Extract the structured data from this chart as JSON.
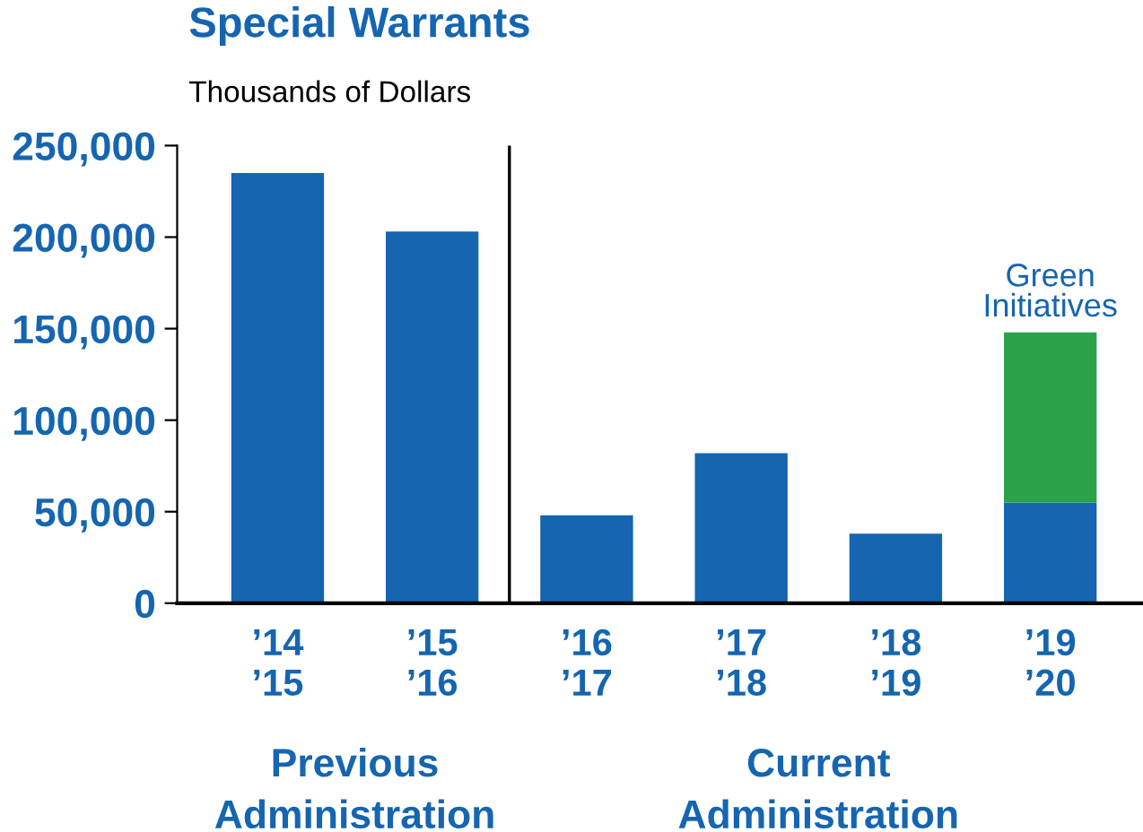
{
  "chart_data": {
    "type": "bar",
    "title": "Special Warrants",
    "subtitle": "Thousands of Dollars",
    "stacked": true,
    "categories": [
      "’14\n’15",
      "’15\n’16",
      "’16\n’17",
      "’17\n’18",
      "’18\n’19",
      "’19\n’20"
    ],
    "series": [
      {
        "color": "#1565b0",
        "values": [
          235000,
          203000,
          48000,
          82000,
          38000,
          55000
        ]
      },
      {
        "name": "Green\nInitiatives",
        "color": "#2ba24a",
        "values": [
          null,
          null,
          null,
          null,
          null,
          93000
        ]
      }
    ],
    "ylim": [
      0,
      250000
    ],
    "yticks": [
      {
        "value": 0,
        "label": "0"
      },
      {
        "value": 50000,
        "label": "50,000"
      },
      {
        "value": 100000,
        "label": "100,000"
      },
      {
        "value": 150000,
        "label": "150,000"
      },
      {
        "value": 200000,
        "label": "200,000"
      },
      {
        "value": 250000,
        "label": "250,000"
      }
    ],
    "annotations": [
      "Previous\nAdministration",
      "Current\nAdministration"
    ],
    "grid": false,
    "legend": false
  }
}
